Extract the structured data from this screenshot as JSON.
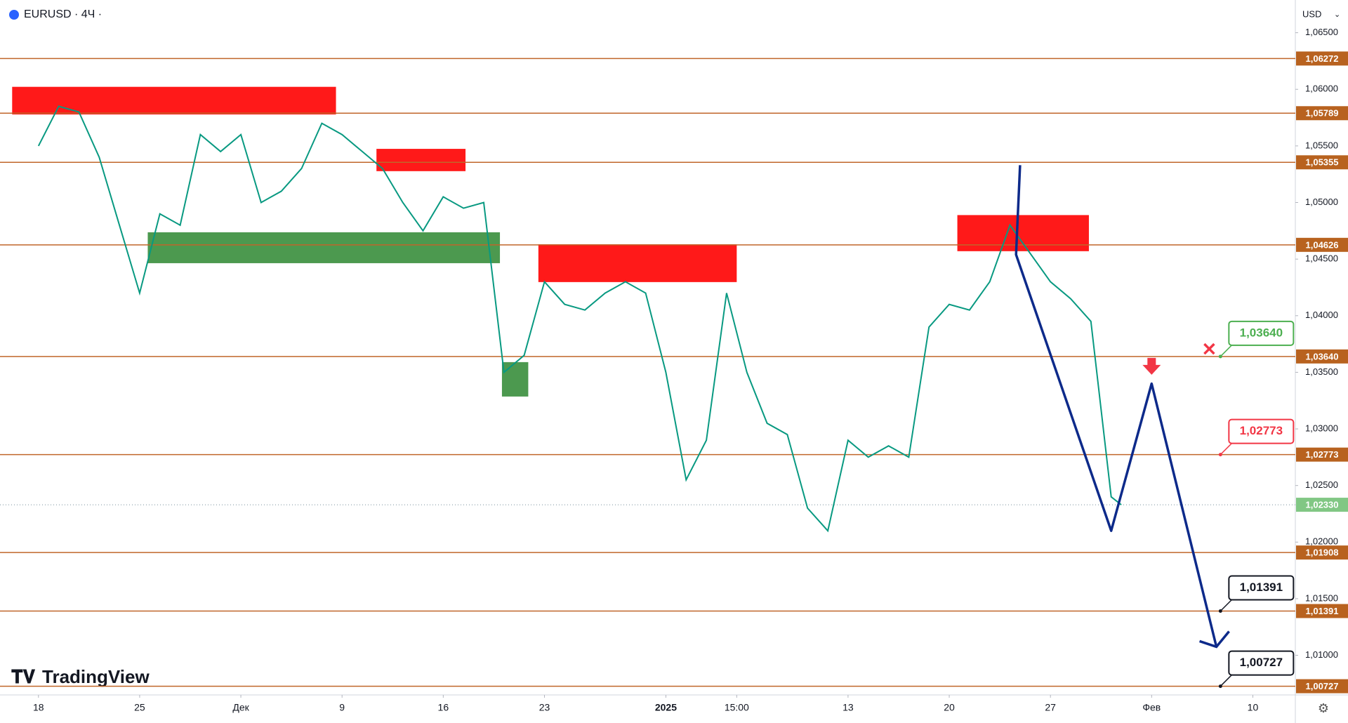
{
  "header": {
    "symbol": "EURUSD · 4Ч ·",
    "currency": "USD",
    "logo": "TradingView"
  },
  "chart_data": {
    "type": "line",
    "xlim": [
      -1.9,
      62.1
    ],
    "ylim": [
      1.0065,
      1.06789
    ],
    "xticks": [
      {
        "value": 0,
        "label": "18"
      },
      {
        "value": 5,
        "label": "25"
      },
      {
        "value": 10,
        "label": "Дек"
      },
      {
        "value": 15,
        "label": "9"
      },
      {
        "value": 20,
        "label": "16"
      },
      {
        "value": 25,
        "label": "23"
      },
      {
        "value": 31,
        "label": "2025"
      },
      {
        "value": 34.5,
        "label": "15:00"
      },
      {
        "value": 40,
        "label": "13"
      },
      {
        "value": 45,
        "label": "20"
      },
      {
        "value": 50,
        "label": "27"
      },
      {
        "value": 55,
        "label": "Фев"
      },
      {
        "value": 60,
        "label": "10"
      }
    ],
    "yticks": [
      {
        "value": 1.065,
        "label": "1,06500"
      },
      {
        "value": 1.06,
        "label": "1,06000"
      },
      {
        "value": 1.055,
        "label": "1,05500"
      },
      {
        "value": 1.05,
        "label": "1,05000"
      },
      {
        "value": 1.045,
        "label": "1,04500"
      },
      {
        "value": 1.04,
        "label": "1,04000"
      },
      {
        "value": 1.035,
        "label": "1,03500"
      },
      {
        "value": 1.03,
        "label": "1,03000"
      },
      {
        "value": 1.025,
        "label": "1,02500"
      },
      {
        "value": 1.02,
        "label": "1,02000"
      },
      {
        "value": 1.015,
        "label": "1,01500"
      },
      {
        "value": 1.01,
        "label": "1,01000"
      }
    ],
    "series": [
      {
        "name": "EURUSD",
        "color": "#089981",
        "x": [
          0,
          1,
          2,
          3,
          4,
          5,
          6,
          7,
          8,
          9,
          10,
          11,
          12,
          13,
          14,
          15,
          16,
          17,
          18,
          19,
          20,
          21,
          22,
          23,
          24,
          25,
          26,
          27,
          28,
          29,
          30,
          31,
          32,
          33,
          34,
          35,
          36,
          37,
          38,
          39,
          40,
          41,
          42,
          43,
          44,
          45,
          46,
          47,
          48,
          49,
          50,
          51,
          52,
          53,
          53.5
        ],
        "values": [
          1.055,
          1.0585,
          1.058,
          1.054,
          1.048,
          1.042,
          1.049,
          1.048,
          1.056,
          1.0545,
          1.056,
          1.05,
          1.051,
          1.053,
          1.057,
          1.056,
          1.0545,
          1.053,
          1.05,
          1.0475,
          1.0505,
          1.0495,
          1.05,
          1.035,
          1.0365,
          1.043,
          1.041,
          1.0405,
          1.042,
          1.043,
          1.042,
          1.035,
          1.0255,
          1.029,
          1.042,
          1.035,
          1.0305,
          1.0295,
          1.023,
          1.021,
          1.029,
          1.0275,
          1.0285,
          1.0275,
          1.039,
          1.041,
          1.0405,
          1.043,
          1.048,
          1.0455,
          1.043,
          1.0415,
          1.0395,
          1.024,
          1.0233
        ]
      }
    ],
    "levels": [
      {
        "value": 1.06272,
        "label": "1,06272"
      },
      {
        "value": 1.05789,
        "label": "1,05789"
      },
      {
        "value": 1.05355,
        "label": "1,05355"
      },
      {
        "value": 1.04626,
        "label": "1,04626"
      },
      {
        "value": 1.0364,
        "label": "1,03640",
        "callout_color": "#4caf50"
      },
      {
        "value": 1.02773,
        "label": "1,02773",
        "callout_color": "#f23645"
      },
      {
        "value": 1.01908,
        "label": "1,01908"
      },
      {
        "value": 1.01391,
        "label": "1,01391",
        "callout_color": "#131722"
      },
      {
        "value": 1.00727,
        "label": "1,00727",
        "callout_color": "#131722"
      }
    ],
    "last": {
      "value": 1.0233,
      "label": "1,02330"
    },
    "zones": [
      {
        "x": [
          -1.3,
          14.7
        ],
        "y": [
          1.05778,
          1.06022
        ],
        "color": "#ff0000"
      },
      {
        "x": [
          16.7,
          21.1
        ],
        "y": [
          1.05277,
          1.05474
        ],
        "color": "#ff0000"
      },
      {
        "x": [
          24.7,
          34.5
        ],
        "y": [
          1.04297,
          1.04631
        ],
        "color": "#ff0000"
      },
      {
        "x": [
          45.4,
          51.9
        ],
        "y": [
          1.0457,
          1.04889
        ],
        "color": "#ff0000"
      },
      {
        "x": [
          5.4,
          22.8
        ],
        "y": [
          1.04464,
          1.04737
        ],
        "color": "#388e3c"
      },
      {
        "x": [
          22.9,
          24.2
        ],
        "y": [
          1.03286,
          1.0359
        ],
        "color": "#388e3c"
      }
    ],
    "projection": {
      "color": "#0d2a8a",
      "x": [
        48.5,
        48.3,
        53,
        55,
        58.2
      ],
      "values": [
        1.0533,
        1.0454,
        1.021,
        1.034,
        1.01075
      ]
    },
    "callout_x": 58.4
  }
}
